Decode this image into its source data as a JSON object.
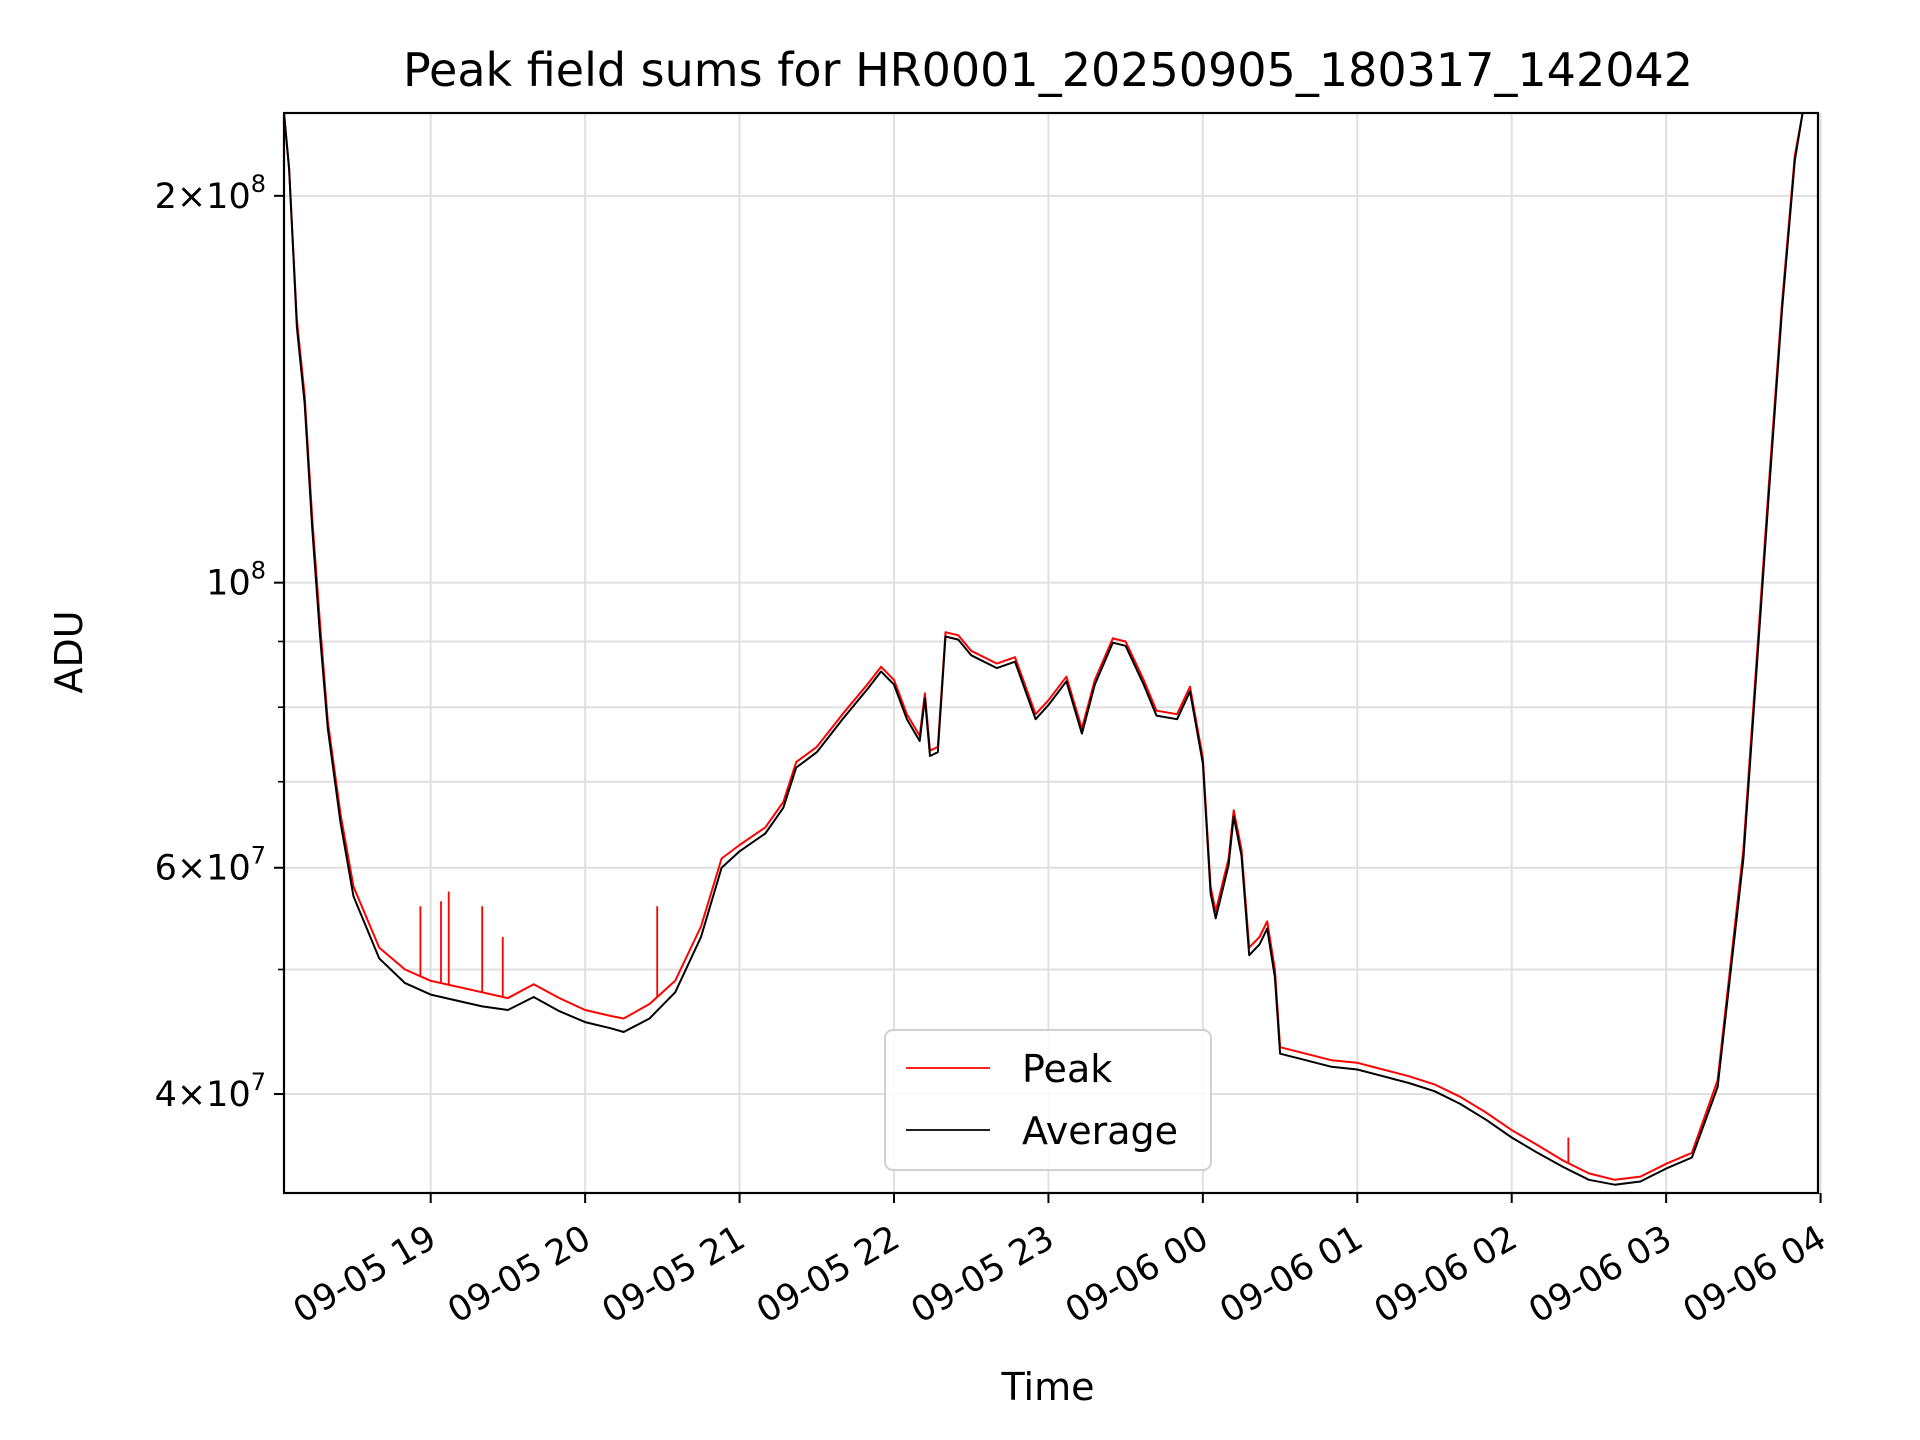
{
  "chart_data": {
    "type": "line",
    "title": "Peak field sums for HR0001_20250905_180317_142042",
    "xlabel": "Time",
    "ylabel": "ADU",
    "y_scale": "log",
    "xlim": [
      "2025-09-05 18:03",
      "2025-09-06 03:59"
    ],
    "ylim": [
      33500000,
      232000000
    ],
    "grid": true,
    "legend_position": "lower-center",
    "x_ticks": [
      {
        "value": "2025-09-05 19:00",
        "label": "09-05 19"
      },
      {
        "value": "2025-09-05 20:00",
        "label": "09-05 20"
      },
      {
        "value": "2025-09-05 21:00",
        "label": "09-05 21"
      },
      {
        "value": "2025-09-05 22:00",
        "label": "09-05 22"
      },
      {
        "value": "2025-09-05 23:00",
        "label": "09-05 23"
      },
      {
        "value": "2025-09-06 00:00",
        "label": "09-06 00"
      },
      {
        "value": "2025-09-06 01:00",
        "label": "09-06 01"
      },
      {
        "value": "2025-09-06 02:00",
        "label": "09-06 02"
      },
      {
        "value": "2025-09-06 03:00",
        "label": "09-06 03"
      },
      {
        "value": "2025-09-06 04:00",
        "label": "09-06 04"
      }
    ],
    "y_ticks_major": [
      {
        "value": 40000000,
        "mant": "4",
        "exp": "7"
      },
      {
        "value": 60000000,
        "mant": "6",
        "exp": "7"
      },
      {
        "value": 100000000,
        "mant": "",
        "exp": "8"
      },
      {
        "value": 200000000,
        "mant": "2",
        "exp": "8"
      }
    ],
    "y_ticks_minor": [
      50000000,
      70000000,
      80000000,
      90000000
    ],
    "series": [
      {
        "name": "Peak",
        "color": "#ff0000",
        "points": [
          [
            "2025-09-05 18:03",
            232000000
          ],
          [
            "2025-09-05 18:05",
            210000000
          ],
          [
            "2025-09-05 18:08",
            160000000
          ],
          [
            "2025-09-05 18:11",
            140000000
          ],
          [
            "2025-09-05 18:14",
            112000000
          ],
          [
            "2025-09-05 18:17",
            93000000
          ],
          [
            "2025-09-05 18:20",
            78000000
          ],
          [
            "2025-09-05 18:25",
            66000000
          ],
          [
            "2025-09-05 18:30",
            58000000
          ],
          [
            "2025-09-05 18:40",
            52000000
          ],
          [
            "2025-09-05 18:50",
            50000000
          ],
          [
            "2025-09-05 19:00",
            49000000
          ],
          [
            "2025-09-05 19:10",
            48500000
          ],
          [
            "2025-09-05 19:20",
            48000000
          ],
          [
            "2025-09-05 19:30",
            47500000
          ],
          [
            "2025-09-05 19:40",
            48700000
          ],
          [
            "2025-09-05 19:50",
            47500000
          ],
          [
            "2025-09-05 20:00",
            46500000
          ],
          [
            "2025-09-05 20:10",
            46000000
          ],
          [
            "2025-09-05 20:15",
            45800000
          ],
          [
            "2025-09-05 20:25",
            47000000
          ],
          [
            "2025-09-05 20:35",
            49000000
          ],
          [
            "2025-09-05 20:45",
            54000000
          ],
          [
            "2025-09-05 20:53",
            61000000
          ],
          [
            "2025-09-05 21:00",
            62500000
          ],
          [
            "2025-09-05 21:10",
            64500000
          ],
          [
            "2025-09-05 21:17",
            67500000
          ],
          [
            "2025-09-05 21:22",
            72500000
          ],
          [
            "2025-09-05 21:30",
            74500000
          ],
          [
            "2025-09-05 21:40",
            79000000
          ],
          [
            "2025-09-05 21:50",
            83500000
          ],
          [
            "2025-09-05 21:55",
            86000000
          ],
          [
            "2025-09-05 22:00",
            84000000
          ],
          [
            "2025-09-05 22:05",
            79000000
          ],
          [
            "2025-09-05 22:10",
            76000000
          ],
          [
            "2025-09-05 22:12",
            82000000
          ],
          [
            "2025-09-05 22:14",
            74000000
          ],
          [
            "2025-09-05 22:17",
            74500000
          ],
          [
            "2025-09-05 22:20",
            91500000
          ],
          [
            "2025-09-05 22:25",
            91000000
          ],
          [
            "2025-09-05 22:30",
            88500000
          ],
          [
            "2025-09-05 22:40",
            86500000
          ],
          [
            "2025-09-05 22:47",
            87500000
          ],
          [
            "2025-09-05 22:55",
            79000000
          ],
          [
            "2025-09-05 23:00",
            81000000
          ],
          [
            "2025-09-05 23:07",
            84500000
          ],
          [
            "2025-09-05 23:13",
            77000000
          ],
          [
            "2025-09-05 23:18",
            84000000
          ],
          [
            "2025-09-05 23:25",
            90500000
          ],
          [
            "2025-09-05 23:30",
            90000000
          ],
          [
            "2025-09-05 23:37",
            84000000
          ],
          [
            "2025-09-05 23:42",
            79500000
          ],
          [
            "2025-09-05 23:50",
            79000000
          ],
          [
            "2025-09-05 23:55",
            83000000
          ],
          [
            "2025-09-06 00:00",
            73000000
          ],
          [
            "2025-09-06 00:03",
            58000000
          ],
          [
            "2025-09-06 00:05",
            55500000
          ],
          [
            "2025-09-06 00:10",
            61000000
          ],
          [
            "2025-09-06 00:12",
            66500000
          ],
          [
            "2025-09-06 00:15",
            62000000
          ],
          [
            "2025-09-06 00:18",
            52000000
          ],
          [
            "2025-09-06 00:22",
            53000000
          ],
          [
            "2025-09-06 00:25",
            54500000
          ],
          [
            "2025-09-06 00:28",
            50000000
          ],
          [
            "2025-09-06 00:30",
            43500000
          ],
          [
            "2025-09-06 00:40",
            43000000
          ],
          [
            "2025-09-06 00:50",
            42500000
          ],
          [
            "2025-09-06 01:00",
            42300000
          ],
          [
            "2025-09-06 01:10",
            41800000
          ],
          [
            "2025-09-06 01:20",
            41300000
          ],
          [
            "2025-09-06 01:30",
            40700000
          ],
          [
            "2025-09-06 01:40",
            39800000
          ],
          [
            "2025-09-06 01:50",
            38700000
          ],
          [
            "2025-09-06 02:00",
            37500000
          ],
          [
            "2025-09-06 02:10",
            36500000
          ],
          [
            "2025-09-06 02:20",
            35500000
          ],
          [
            "2025-09-06 02:30",
            34700000
          ],
          [
            "2025-09-06 02:40",
            34300000
          ],
          [
            "2025-09-06 02:50",
            34500000
          ],
          [
            "2025-09-06 03:00",
            35300000
          ],
          [
            "2025-09-06 03:10",
            36000000
          ],
          [
            "2025-09-06 03:20",
            41000000
          ],
          [
            "2025-09-06 03:30",
            62000000
          ],
          [
            "2025-09-06 03:40",
            120000000
          ],
          [
            "2025-09-06 03:45",
            165000000
          ],
          [
            "2025-09-06 03:50",
            215000000
          ],
          [
            "2025-09-06 03:53",
            232000000
          ]
        ]
      },
      {
        "name": "Average",
        "color": "#000000",
        "points": [
          [
            "2025-09-05 18:03",
            232000000
          ],
          [
            "2025-09-05 18:05",
            210000000
          ],
          [
            "2025-09-05 18:08",
            158000000
          ],
          [
            "2025-09-05 18:11",
            138000000
          ],
          [
            "2025-09-05 18:14",
            110000000
          ],
          [
            "2025-09-05 18:17",
            91000000
          ],
          [
            "2025-09-05 18:20",
            77000000
          ],
          [
            "2025-09-05 18:25",
            65000000
          ],
          [
            "2025-09-05 18:30",
            57000000
          ],
          [
            "2025-09-05 18:40",
            51000000
          ],
          [
            "2025-09-05 18:50",
            48800000
          ],
          [
            "2025-09-05 19:00",
            47800000
          ],
          [
            "2025-09-05 19:10",
            47300000
          ],
          [
            "2025-09-05 19:20",
            46800000
          ],
          [
            "2025-09-05 19:30",
            46500000
          ],
          [
            "2025-09-05 19:40",
            47600000
          ],
          [
            "2025-09-05 19:50",
            46400000
          ],
          [
            "2025-09-05 20:00",
            45500000
          ],
          [
            "2025-09-05 20:10",
            45000000
          ],
          [
            "2025-09-05 20:15",
            44700000
          ],
          [
            "2025-09-05 20:25",
            45800000
          ],
          [
            "2025-09-05 20:35",
            48000000
          ],
          [
            "2025-09-05 20:45",
            53000000
          ],
          [
            "2025-09-05 20:53",
            60000000
          ],
          [
            "2025-09-05 21:00",
            61800000
          ],
          [
            "2025-09-05 21:10",
            63800000
          ],
          [
            "2025-09-05 21:17",
            66800000
          ],
          [
            "2025-09-05 21:22",
            71800000
          ],
          [
            "2025-09-05 21:30",
            73800000
          ],
          [
            "2025-09-05 21:40",
            78300000
          ],
          [
            "2025-09-05 21:50",
            82800000
          ],
          [
            "2025-09-05 21:55",
            85300000
          ],
          [
            "2025-09-05 22:00",
            83300000
          ],
          [
            "2025-09-05 22:05",
            78300000
          ],
          [
            "2025-09-05 22:10",
            75300000
          ],
          [
            "2025-09-05 22:12",
            81300000
          ],
          [
            "2025-09-05 22:14",
            73300000
          ],
          [
            "2025-09-05 22:17",
            73800000
          ],
          [
            "2025-09-05 22:20",
            90800000
          ],
          [
            "2025-09-05 22:25",
            90300000
          ],
          [
            "2025-09-05 22:30",
            87800000
          ],
          [
            "2025-09-05 22:40",
            85800000
          ],
          [
            "2025-09-05 22:47",
            86800000
          ],
          [
            "2025-09-05 22:55",
            78300000
          ],
          [
            "2025-09-05 23:00",
            80300000
          ],
          [
            "2025-09-05 23:07",
            83800000
          ],
          [
            "2025-09-05 23:13",
            76300000
          ],
          [
            "2025-09-05 23:18",
            83300000
          ],
          [
            "2025-09-05 23:25",
            89800000
          ],
          [
            "2025-09-05 23:30",
            89300000
          ],
          [
            "2025-09-05 23:37",
            83300000
          ],
          [
            "2025-09-05 23:42",
            78800000
          ],
          [
            "2025-09-05 23:50",
            78300000
          ],
          [
            "2025-09-05 23:55",
            82300000
          ],
          [
            "2025-09-06 00:00",
            72300000
          ],
          [
            "2025-09-06 00:03",
            57300000
          ],
          [
            "2025-09-06 00:05",
            54800000
          ],
          [
            "2025-09-06 00:10",
            60300000
          ],
          [
            "2025-09-06 00:12",
            65800000
          ],
          [
            "2025-09-06 00:15",
            61300000
          ],
          [
            "2025-09-06 00:18",
            51300000
          ],
          [
            "2025-09-06 00:22",
            52300000
          ],
          [
            "2025-09-06 00:25",
            53800000
          ],
          [
            "2025-09-06 00:28",
            49300000
          ],
          [
            "2025-09-06 00:30",
            43000000
          ],
          [
            "2025-09-06 00:40",
            42500000
          ],
          [
            "2025-09-06 00:50",
            42000000
          ],
          [
            "2025-09-06 01:00",
            41800000
          ],
          [
            "2025-09-06 01:10",
            41300000
          ],
          [
            "2025-09-06 01:20",
            40800000
          ],
          [
            "2025-09-06 01:30",
            40200000
          ],
          [
            "2025-09-06 01:40",
            39300000
          ],
          [
            "2025-09-06 01:50",
            38200000
          ],
          [
            "2025-09-06 02:00",
            37000000
          ],
          [
            "2025-09-06 02:10",
            36000000
          ],
          [
            "2025-09-06 02:20",
            35100000
          ],
          [
            "2025-09-06 02:30",
            34300000
          ],
          [
            "2025-09-06 02:40",
            34000000
          ],
          [
            "2025-09-06 02:50",
            34200000
          ],
          [
            "2025-09-06 03:00",
            35000000
          ],
          [
            "2025-09-06 03:10",
            35700000
          ],
          [
            "2025-09-06 03:20",
            40500000
          ],
          [
            "2025-09-06 03:30",
            61000000
          ],
          [
            "2025-09-06 03:40",
            118000000
          ],
          [
            "2025-09-06 03:45",
            163000000
          ],
          [
            "2025-09-06 03:50",
            213000000
          ],
          [
            "2025-09-06 03:53",
            232000000
          ]
        ]
      }
    ],
    "annotations": [
      {
        "type": "spike",
        "series": "Peak",
        "x": "2025-09-05 18:56",
        "y": 56000000
      },
      {
        "type": "spike",
        "series": "Peak",
        "x": "2025-09-05 19:04",
        "y": 56500000
      },
      {
        "type": "spike",
        "series": "Peak",
        "x": "2025-09-05 19:07",
        "y": 57500000
      },
      {
        "type": "spike",
        "series": "Peak",
        "x": "2025-09-05 19:20",
        "y": 56000000
      },
      {
        "type": "spike",
        "series": "Peak",
        "x": "2025-09-05 19:28",
        "y": 53000000
      },
      {
        "type": "spike",
        "series": "Peak",
        "x": "2025-09-05 20:28",
        "y": 56000000
      },
      {
        "type": "spike",
        "series": "Peak",
        "x": "2025-09-06 02:22",
        "y": 37000000
      }
    ]
  }
}
